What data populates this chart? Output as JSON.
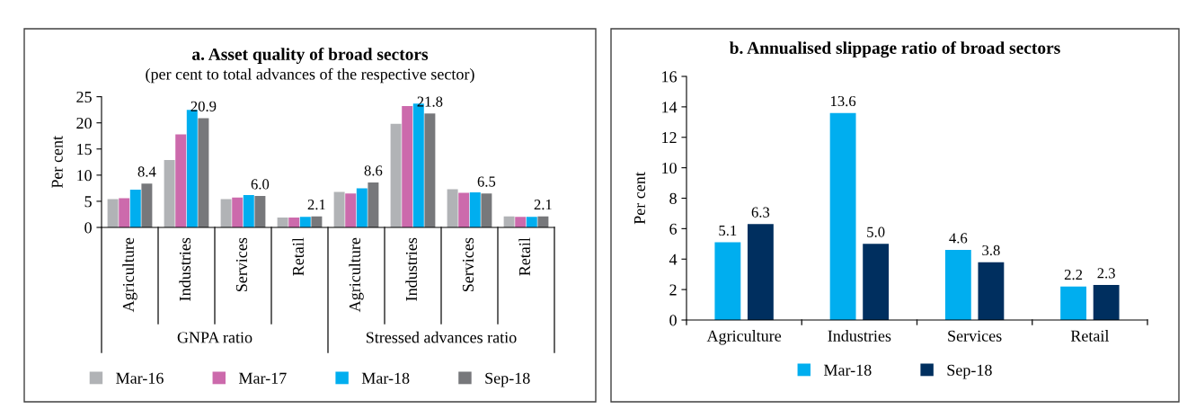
{
  "chart_data": [
    {
      "type": "bar",
      "title": "a. Asset quality of broad sectors",
      "subtitle": "(per cent to total advances of the respective sector)",
      "ylabel": "Per cent",
      "categories": [
        "Agriculture",
        "Industries",
        "Services",
        "Retail",
        "Agriculture",
        "Industries",
        "Services",
        "Retail"
      ],
      "series": [
        {
          "name": "Mar-16",
          "color": "#b1b3b6",
          "values": [
            5.4,
            12.9,
            5.4,
            1.9,
            6.8,
            19.8,
            7.3,
            2.1
          ]
        },
        {
          "name": "Mar-17",
          "color": "#cc6aac",
          "values": [
            5.6,
            17.8,
            5.7,
            1.9,
            6.5,
            23.2,
            6.6,
            2.0
          ]
        },
        {
          "name": "Mar-18",
          "color": "#00aeef",
          "values": [
            7.2,
            22.5,
            6.2,
            2.0,
            7.5,
            23.7,
            6.7,
            2.0
          ]
        },
        {
          "name": "Sep-18",
          "color": "#77787b",
          "values": [
            8.4,
            20.9,
            6.0,
            2.1,
            8.6,
            21.8,
            6.5,
            2.1
          ],
          "value_labels": [
            "8.4",
            "20.9",
            "6.0",
            "2.1",
            "8.6",
            "21.8",
            "6.5",
            "2.1"
          ]
        }
      ],
      "ylim": [
        0,
        25
      ],
      "yticks": [
        0,
        5,
        10,
        15,
        20,
        25
      ],
      "grid": false,
      "legend": "bottom",
      "annotations": [
        "GNPA ratio",
        "Stressed advances ratio"
      ]
    },
    {
      "type": "bar",
      "title": "b. Annualised slippage ratio of broad sectors",
      "ylabel": "Per cent",
      "categories": [
        "Agriculture",
        "Industries",
        "Services",
        "Retail"
      ],
      "series": [
        {
          "name": "Mar-18",
          "color": "#00aeef",
          "values": [
            5.1,
            13.6,
            4.6,
            2.2
          ],
          "value_labels": [
            "5.1",
            "13.6",
            "4.6",
            "2.2"
          ]
        },
        {
          "name": "Sep-18",
          "color": "#002f5f",
          "values": [
            6.3,
            5.0,
            3.8,
            2.3
          ],
          "value_labels": [
            "6.3",
            "5.0",
            "3.8",
            "2.3"
          ]
        }
      ],
      "ylim": [
        0,
        16
      ],
      "yticks": [
        0,
        2,
        4,
        6,
        8,
        10,
        12,
        14,
        16
      ],
      "grid": false,
      "legend": "bottom"
    }
  ]
}
